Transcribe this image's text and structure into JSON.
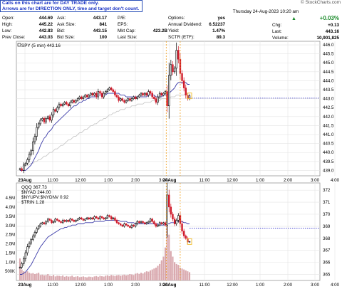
{
  "annotation": {
    "line1": "Calls on this chart are for DAY TRADE only.",
    "line2": "Arrows are for DIRECTION ONLY, time and target don't count."
  },
  "credit": "© StockCharts.com",
  "quote": {
    "open_label": "Open:",
    "open": "444.69",
    "high_label": "High:",
    "high": "445.22",
    "low_label": "Low:",
    "low": "442.83",
    "prev_close_label": "Prev Close:",
    "prev_close": "443.03",
    "ask_label": "Ask:",
    "ask": "443.17",
    "ask_size_label": "Ask Size:",
    "ask_size": "841",
    "bid_label": "Bid:",
    "bid": "443.15",
    "bid_size_label": "Bid Size:",
    "bid_size": "100",
    "pe_label": "P/E:",
    "pe": "",
    "eps_label": "EPS:",
    "eps": "",
    "mkt_cap_label": "Mkt Cap:",
    "mkt_cap": "423.2B",
    "last_size_label": "Last Size:",
    "last_size": "",
    "options_label": "Options:",
    "options": "yes",
    "annual_dividend_label": "Annual Dividend:",
    "annual_dividend": "6.52237",
    "yield_label": "Yield:",
    "yield": "1.47%",
    "sctr_label": "SCTR (ETF):",
    "sctr": "89.3",
    "date_time": "Thursday  24-Aug-2023  10:20 am",
    "change_pct": "+0.03%",
    "chg_label": "Chg:",
    "chg": "+0.13",
    "last_label": "Last:",
    "last": "443.16",
    "volume_label": "Volume:",
    "volume": "10,901,825"
  },
  "colors": {
    "up": "#000000",
    "down": "#d01a2a",
    "ma_fast": "#3a3aa8",
    "ma_slow": "#c8c8c8",
    "ref_line": "#3333cc",
    "marker_line": "#f0a020",
    "volume": "#d9a8ae",
    "price_box": "#f2c13a",
    "grid": "#e4e4e4"
  },
  "chart_data": [
    {
      "type": "candlestick",
      "legend": "SPY (5 min) 443.16",
      "x_tick_labels": [
        "23Aug",
        "11:00",
        "12:00",
        "1:00",
        "2:00",
        "3:00",
        "24Aug",
        "11:00",
        "12:00",
        "1:00",
        "2:00",
        "3:00",
        "4:00"
      ],
      "y_tick_labels": [
        "439.0",
        "439.5",
        "440.0",
        "440.5",
        "441.0",
        "441.5",
        "442.0",
        "442.5",
        "443.0",
        "443.5",
        "444.0",
        "444.5",
        "445.0",
        "445.5",
        "446.0"
      ],
      "ylim": [
        438.7,
        446.2
      ],
      "last_price": 443.16,
      "reference_level": 443.03,
      "close": [
        439.1,
        439.0,
        439.3,
        439.4,
        439.6,
        439.9,
        440.1,
        440.6,
        440.9,
        441.4,
        441.6,
        441.8,
        441.9,
        441.7,
        441.9,
        442.0,
        441.8,
        442.1,
        442.4,
        442.3,
        442.5,
        442.7,
        442.6,
        442.7,
        442.8,
        442.7,
        442.6,
        442.8,
        442.9,
        442.8,
        442.9,
        443.0,
        443.1,
        443.0,
        443.1,
        443.2,
        443.1,
        443.2,
        443.3,
        443.2,
        443.3,
        443.1,
        443.4,
        443.3,
        443.1,
        443.3,
        443.4,
        443.5,
        443.6,
        443.5,
        443.4,
        443.2,
        443.1,
        442.9,
        443.0,
        442.9,
        442.8,
        442.9,
        443.0,
        442.9,
        443.0,
        443.1,
        443.0,
        443.1,
        443.2,
        443.3,
        443.2,
        443.3,
        443.2,
        443.4,
        443.3,
        443.1,
        443.0,
        442.8,
        443.1,
        443.3,
        443.2,
        443.3,
        443.4,
        442.6,
        444.3,
        444.9,
        444.5,
        444.7,
        445.7,
        445.2,
        444.4,
        444.0,
        443.6,
        443.2,
        443.0,
        443.16
      ],
      "ma_fast": [
        439.0,
        439.0,
        439.0,
        439.0,
        439.1,
        439.2,
        439.3,
        439.5,
        439.7,
        439.9,
        440.1,
        440.4,
        440.6,
        440.8,
        440.9,
        441.1,
        441.2,
        441.3,
        441.5,
        441.6,
        441.7,
        441.8,
        441.9,
        442.0,
        442.1,
        442.2,
        442.3,
        442.4,
        442.5,
        442.6,
        442.6,
        442.7,
        442.8,
        442.8,
        442.9,
        442.9,
        443.0,
        443.0,
        443.1,
        443.1,
        443.1,
        443.1,
        443.2,
        443.2,
        443.2,
        443.2,
        443.2,
        443.3,
        443.3,
        443.3,
        443.3,
        443.3,
        443.3,
        443.3,
        443.2,
        443.2,
        443.2,
        443.1,
        443.1,
        443.1,
        443.1,
        443.1,
        443.1,
        443.1,
        443.1,
        443.1,
        443.1,
        443.1,
        443.1,
        443.2,
        443.2,
        443.2,
        443.2,
        443.1,
        443.1,
        443.1,
        443.1,
        443.2,
        443.2,
        443.2,
        443.3,
        443.4,
        443.5,
        443.6,
        443.8,
        443.9,
        443.9,
        443.9,
        443.9,
        443.9,
        443.8,
        443.8
      ],
      "ma_slow": [
        439.2,
        439.2,
        439.2,
        439.3,
        439.3,
        439.3,
        439.4,
        439.4,
        439.5,
        439.5,
        439.6,
        439.6,
        439.7,
        439.8,
        439.8,
        439.9,
        440.0,
        440.0,
        440.1,
        440.2,
        440.2,
        440.3,
        440.4,
        440.4,
        440.5,
        440.6,
        440.7,
        440.7,
        440.8,
        440.9,
        440.9,
        441.0,
        441.1,
        441.1,
        441.2,
        441.3,
        441.3,
        441.4,
        441.5,
        441.5,
        441.6,
        441.6,
        441.7,
        441.8,
        441.8,
        441.9,
        441.9,
        442.0,
        442.1,
        442.1,
        442.2,
        442.2,
        442.3,
        442.3,
        442.4,
        442.4,
        442.4,
        442.5,
        442.5,
        442.5,
        442.6,
        442.6,
        442.6,
        442.7,
        442.7,
        442.7,
        442.7,
        442.8,
        442.8,
        442.8,
        442.8,
        442.9,
        442.9,
        442.9,
        442.9,
        442.9,
        443.0,
        443.0,
        443.0,
        443.0,
        443.0,
        443.1,
        443.1,
        443.1,
        443.2,
        443.2,
        443.2,
        443.2,
        443.2,
        443.3,
        443.3,
        443.3
      ]
    },
    {
      "type": "candlestick",
      "legend": [
        "QQQ 367.73",
        "$NYAD 244.00",
        "$NYUPV:$NYDNV 0.92",
        "$TRIN 1.28"
      ],
      "x_tick_labels": [
        "23Aug",
        "11:00",
        "12:00",
        "1:00",
        "2:00",
        "3:00",
        "24Aug",
        "11:00",
        "12:00",
        "1:00",
        "2:00",
        "3:00",
        "4:00"
      ],
      "y_tick_labels": [
        "365",
        "366",
        "367",
        "368",
        "369",
        "370",
        "371",
        "372"
      ],
      "volume_tick_labels": [
        "500K",
        "1.0M",
        "1.5M",
        "2.0M",
        "2.5M",
        "3.0M",
        "3.5M",
        "4.0M",
        "4.5M"
      ],
      "ylim": [
        364.5,
        372.6
      ],
      "volume_max": 4700000,
      "last_price": 367.73,
      "reference_level": 368.85,
      "close": [
        365.6,
        365.9,
        366.3,
        366.8,
        367.3,
        367.6,
        367.9,
        368.2,
        368.5,
        368.8,
        369.0,
        369.2,
        369.3,
        369.2,
        369.4,
        369.6,
        369.5,
        369.3,
        369.4,
        369.6,
        369.5,
        369.4,
        369.3,
        369.5,
        369.4,
        369.5,
        369.4,
        369.6,
        369.5,
        369.4,
        369.5,
        369.6,
        369.7,
        369.6,
        369.5,
        369.6,
        369.7,
        369.6,
        369.7,
        369.6,
        369.8,
        369.7,
        369.6,
        369.8,
        369.7,
        369.6,
        369.7,
        369.9,
        369.8,
        369.6,
        369.7,
        369.5,
        369.3,
        369.2,
        369.1,
        369.0,
        369.2,
        369.1,
        369.0,
        368.9,
        369.1,
        369.0,
        369.2,
        369.4,
        369.3,
        369.4,
        369.3,
        369.2,
        369.3,
        369.4,
        369.6,
        369.4,
        369.2,
        369.0,
        369.1,
        369.3,
        369.2,
        369.3,
        369.1,
        371.6,
        370.6,
        370.0,
        369.6,
        369.2,
        369.5,
        369.9,
        369.2,
        368.6,
        368.2,
        368.0,
        367.7,
        367.73
      ],
      "ma_fast": [
        365.0,
        365.0,
        365.1,
        365.2,
        365.4,
        365.6,
        365.8,
        366.1,
        366.4,
        366.7,
        367.0,
        367.3,
        367.5,
        367.7,
        367.9,
        368.1,
        368.2,
        368.3,
        368.4,
        368.5,
        368.6,
        368.7,
        368.8,
        368.8,
        368.9,
        368.9,
        369.0,
        369.0,
        369.1,
        369.1,
        369.1,
        369.2,
        369.2,
        369.2,
        369.2,
        369.3,
        369.3,
        369.3,
        369.3,
        369.3,
        369.4,
        369.4,
        369.4,
        369.4,
        369.4,
        369.4,
        369.5,
        369.5,
        369.5,
        369.5,
        369.5,
        369.5,
        369.5,
        369.5,
        369.4,
        369.4,
        369.4,
        369.4,
        369.3,
        369.3,
        369.3,
        369.3,
        369.2,
        369.2,
        369.2,
        369.2,
        369.2,
        369.2,
        369.2,
        369.2,
        369.2,
        369.2,
        369.2,
        369.2,
        369.2,
        369.1,
        369.1,
        369.1,
        369.1,
        369.2,
        369.2,
        369.3,
        369.3,
        369.3,
        369.4,
        369.4,
        369.4,
        369.4,
        369.3,
        369.3,
        369.2,
        369.2
      ],
      "volume": [
        1200000,
        600000,
        500000,
        450000,
        500000,
        420000,
        380000,
        400000,
        350000,
        380000,
        420000,
        300000,
        320000,
        280000,
        300000,
        350000,
        260000,
        240000,
        300000,
        220000,
        260000,
        250000,
        230000,
        270000,
        200000,
        240000,
        210000,
        220000,
        260000,
        190000,
        210000,
        230000,
        180000,
        200000,
        220000,
        190000,
        170000,
        210000,
        200000,
        180000,
        220000,
        240000,
        200000,
        250000,
        230000,
        210000,
        260000,
        280000,
        240000,
        300000,
        270000,
        250000,
        280000,
        300000,
        260000,
        290000,
        320000,
        280000,
        310000,
        350000,
        330000,
        300000,
        370000,
        400000,
        360000,
        420000,
        380000,
        450000,
        500000,
        480000,
        550000,
        600000,
        650000,
        700000,
        800000,
        900000,
        1100000,
        1300000,
        1800000,
        4400000,
        2500000,
        1600000,
        1300000,
        1000000,
        900000,
        850000,
        700000,
        650000,
        600000,
        550000,
        500000,
        450000
      ]
    }
  ]
}
